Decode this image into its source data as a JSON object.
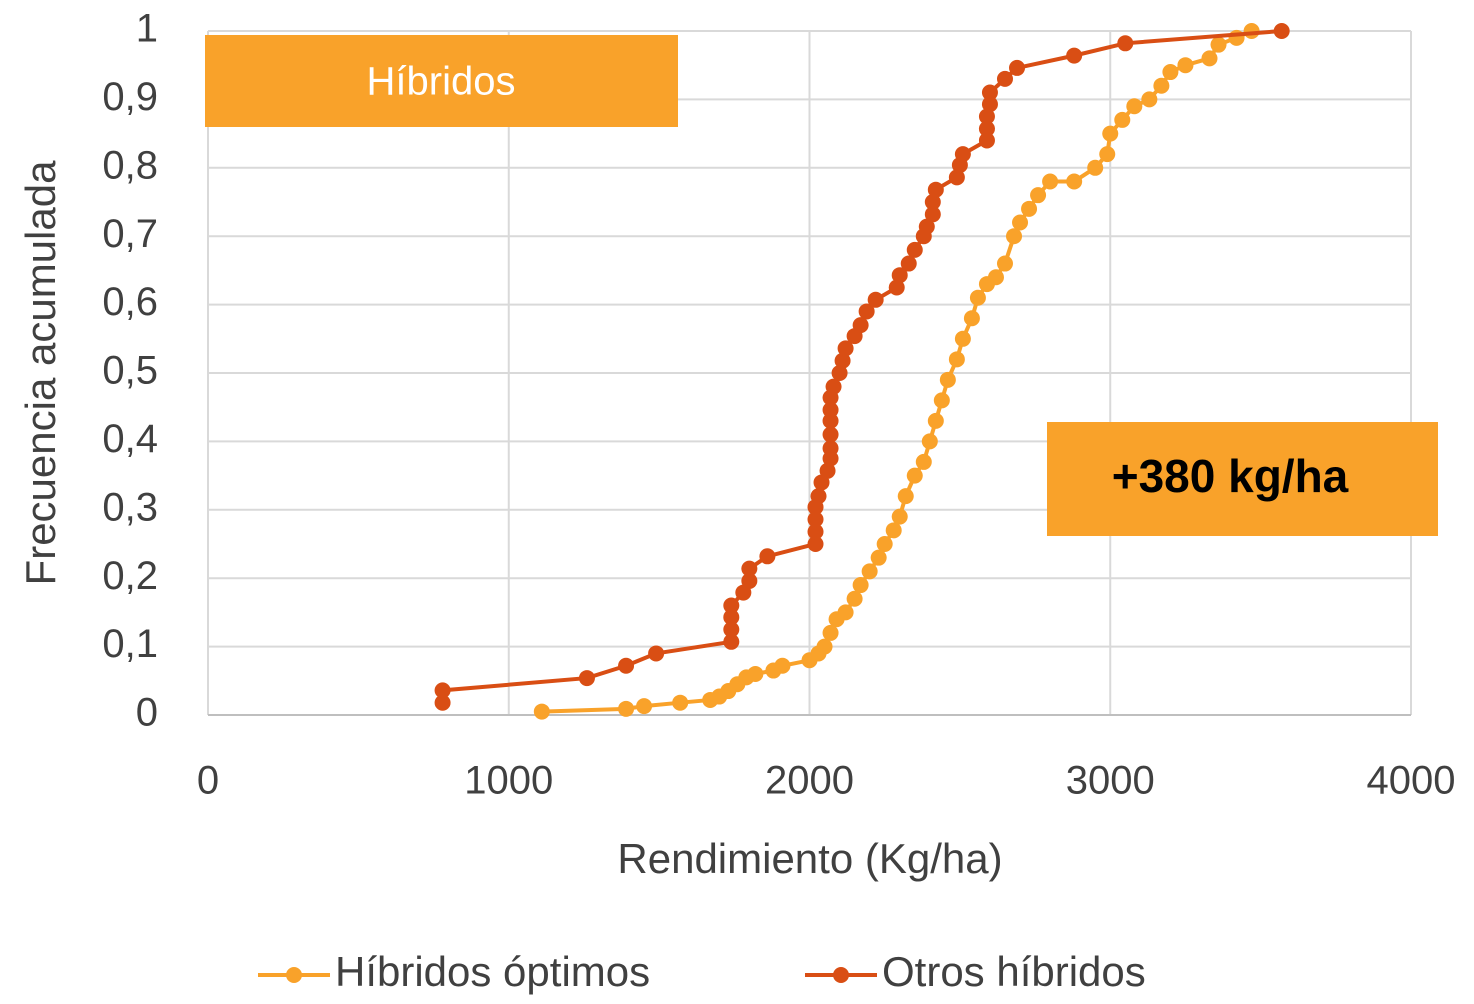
{
  "chart_data": {
    "type": "line",
    "xlabel": "Rendimiento (Kg/ha)",
    "ylabel": "Frecuencia acumulada",
    "annotations": [
      "Híbridos",
      "+380 kg/ha"
    ],
    "xlim": [
      0,
      4000
    ],
    "xticks": [
      0,
      1000,
      2000,
      3000,
      4000
    ],
    "ylim": [
      0,
      1
    ],
    "yticks": [
      0,
      {
        "value": 0.1,
        "label": "0,1"
      },
      {
        "value": 0.2,
        "label": "0,2"
      },
      {
        "value": 0.3,
        "label": "0,3"
      },
      {
        "value": 0.4,
        "label": "0,4"
      },
      {
        "value": 0.5,
        "label": "0,5"
      },
      {
        "value": 0.6,
        "label": "0,6"
      },
      {
        "value": 0.7,
        "label": "0,7"
      },
      {
        "value": 0.8,
        "label": "0,8"
      },
      {
        "value": 0.9,
        "label": "0,9"
      },
      1
    ],
    "grid": true,
    "legend": "bottom",
    "series": [
      {
        "name": "Híbridos óptimos",
        "color": "#f9a22a",
        "x": [
          1110,
          1390,
          1450,
          1570,
          1670,
          1700,
          1730,
          1760,
          1790,
          1820,
          1880,
          1910,
          2000,
          2030,
          2050,
          2070,
          2090,
          2120,
          2150,
          2170,
          2200,
          2230,
          2250,
          2280,
          2300,
          2320,
          2350,
          2380,
          2400,
          2420,
          2440,
          2460,
          2490,
          2510,
          2540,
          2560,
          2590,
          2620,
          2650,
          2680,
          2700,
          2730,
          2760,
          2800,
          2880,
          2950,
          2990,
          3000,
          3040,
          3080,
          3130,
          3170,
          3200,
          3250,
          3330,
          3360,
          3420,
          3470
        ],
        "values": [
          0.005,
          0.009,
          0.013,
          0.018,
          0.022,
          0.027,
          0.035,
          0.045,
          0.055,
          0.06,
          0.065,
          0.072,
          0.08,
          0.09,
          0.1,
          0.12,
          0.14,
          0.15,
          0.17,
          0.19,
          0.21,
          0.23,
          0.25,
          0.27,
          0.29,
          0.32,
          0.35,
          0.37,
          0.4,
          0.43,
          0.46,
          0.49,
          0.52,
          0.55,
          0.58,
          0.61,
          0.63,
          0.64,
          0.66,
          0.7,
          0.72,
          0.74,
          0.76,
          0.78,
          0.78,
          0.8,
          0.82,
          0.85,
          0.87,
          0.89,
          0.9,
          0.92,
          0.94,
          0.95,
          0.96,
          0.98,
          0.99,
          1
        ]
      },
      {
        "name": "Otros híbridos",
        "color": "#d94e14",
        "x": [
          780,
          780,
          1260,
          1390,
          1490,
          1740,
          1740,
          1740,
          1740,
          1780,
          1800,
          1800,
          1860,
          2020,
          2020,
          2020,
          2020,
          2030,
          2040,
          2060,
          2070,
          2070,
          2070,
          2070,
          2070,
          2070,
          2080,
          2100,
          2110,
          2120,
          2150,
          2170,
          2190,
          2220,
          2290,
          2300,
          2330,
          2350,
          2380,
          2390,
          2410,
          2410,
          2420,
          2490,
          2500,
          2510,
          2590,
          2590,
          2590,
          2600,
          2600,
          2650,
          2690,
          2880,
          3050,
          3570
        ],
        "values": [
          0.018,
          0.036,
          0.054,
          0.072,
          0.09,
          0.107,
          0.125,
          0.143,
          0.16,
          0.179,
          0.196,
          0.214,
          0.232,
          0.25,
          0.268,
          0.286,
          0.304,
          0.32,
          0.34,
          0.357,
          0.375,
          0.39,
          0.41,
          0.43,
          0.446,
          0.464,
          0.48,
          0.5,
          0.518,
          0.536,
          0.554,
          0.57,
          0.59,
          0.607,
          0.625,
          0.643,
          0.66,
          0.68,
          0.7,
          0.714,
          0.732,
          0.75,
          0.768,
          0.786,
          0.804,
          0.82,
          0.84,
          0.857,
          0.875,
          0.893,
          0.91,
          0.93,
          0.946,
          0.964,
          0.982,
          1
        ]
      }
    ]
  }
}
